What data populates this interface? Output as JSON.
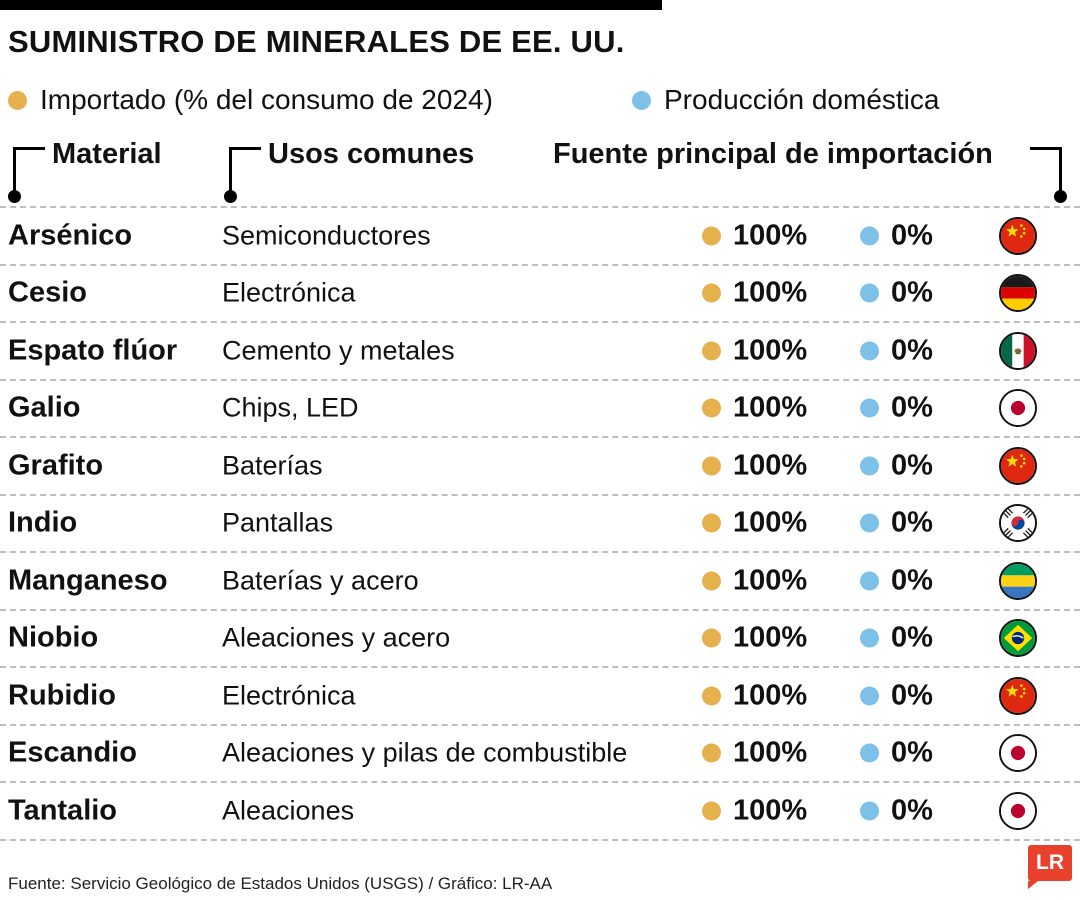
{
  "title": "SUMINISTRO DE MINERALES DE EE. UU.",
  "legend": {
    "imported": {
      "label": "Importado (% del consumo de 2024)",
      "color": "#E5B14E"
    },
    "domestic": {
      "label": "Producción doméstica",
      "color": "#7EC1E8"
    }
  },
  "columns": {
    "material": "Material",
    "uses": "Usos comunes",
    "source": "Fuente principal de importación"
  },
  "rows": [
    {
      "material": "Arsénico",
      "uses": "Semiconductores",
      "imported": "100%",
      "domestic": "0%",
      "flag": "china",
      "source_country": "China"
    },
    {
      "material": "Cesio",
      "uses": "Electrónica",
      "imported": "100%",
      "domestic": "0%",
      "flag": "germany",
      "source_country": "Alemania"
    },
    {
      "material": "Espato flúor",
      "uses": "Cemento y metales",
      "imported": "100%",
      "domestic": "0%",
      "flag": "mexico",
      "source_country": "México"
    },
    {
      "material": "Galio",
      "uses": "Chips, LED",
      "imported": "100%",
      "domestic": "0%",
      "flag": "japan",
      "source_country": "Japón"
    },
    {
      "material": "Grafito",
      "uses": "Baterías",
      "imported": "100%",
      "domestic": "0%",
      "flag": "china",
      "source_country": "China"
    },
    {
      "material": "Indio",
      "uses": "Pantallas",
      "imported": "100%",
      "domestic": "0%",
      "flag": "south-korea",
      "source_country": "Corea del Sur"
    },
    {
      "material": "Manganeso",
      "uses": "Baterías y acero",
      "imported": "100%",
      "domestic": "0%",
      "flag": "gabon",
      "source_country": "Gabón"
    },
    {
      "material": "Niobio",
      "uses": "Aleaciones y acero",
      "imported": "100%",
      "domestic": "0%",
      "flag": "brazil",
      "source_country": "Brasil"
    },
    {
      "material": "Rubidio",
      "uses": "Electrónica",
      "imported": "100%",
      "domestic": "0%",
      "flag": "china",
      "source_country": "China"
    },
    {
      "material": "Escandio",
      "uses": "Aleaciones y pilas de combustible",
      "imported": "100%",
      "domestic": "0%",
      "flag": "japan",
      "source_country": "Japón"
    },
    {
      "material": "Tantalio",
      "uses": "Aleaciones",
      "imported": "100%",
      "domestic": "0%",
      "flag": "japan",
      "source_country": "Japón"
    }
  ],
  "footer": {
    "text": "Fuente: Servicio Geológico de Estados Unidos (USGS)  / Gráfico: LR-AA"
  },
  "logo": {
    "text": "LR",
    "color": "#E8412C"
  },
  "chart_data": {
    "type": "table",
    "title": "SUMINISTRO DE MINERALES DE EE. UU.",
    "legend": [
      "Importado (% del consumo de 2024)",
      "Producción doméstica"
    ],
    "legend_colors": [
      "#E5B14E",
      "#7EC1E8"
    ],
    "columns": [
      "Material",
      "Usos comunes",
      "Importado % del consumo de 2024",
      "Producción doméstica %",
      "Fuente principal de importación"
    ],
    "rows": [
      [
        "Arsénico",
        "Semiconductores",
        100,
        0,
        "China"
      ],
      [
        "Cesio",
        "Electrónica",
        100,
        0,
        "Alemania"
      ],
      [
        "Espato flúor",
        "Cemento y metales",
        100,
        0,
        "México"
      ],
      [
        "Galio",
        "Chips, LED",
        100,
        0,
        "Japón"
      ],
      [
        "Grafito",
        "Baterías",
        100,
        0,
        "China"
      ],
      [
        "Indio",
        "Pantallas",
        100,
        0,
        "Corea del Sur"
      ],
      [
        "Manganeso",
        "Baterías y acero",
        100,
        0,
        "Gabón"
      ],
      [
        "Niobio",
        "Aleaciones y acero",
        100,
        0,
        "Brasil"
      ],
      [
        "Rubidio",
        "Electrónica",
        100,
        0,
        "China"
      ],
      [
        "Escandio",
        "Aleaciones y pilas de combustible",
        100,
        0,
        "Japón"
      ],
      [
        "Tantalio",
        "Aleaciones",
        100,
        0,
        "Japón"
      ]
    ],
    "source": "Fuente: Servicio Geológico de Estados Unidos (USGS) / Gráfico: LR-AA"
  }
}
